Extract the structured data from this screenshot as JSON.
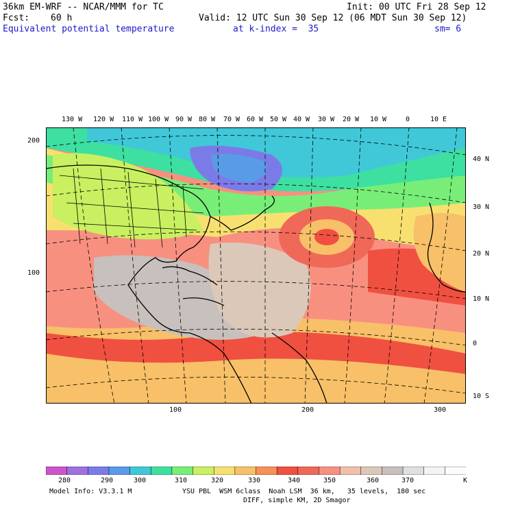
{
  "header": {
    "model": "36km EM-WRF -- NCAR/MMM for TC",
    "init": "Init: 00 UTC Fri 28 Sep 12",
    "fcst_label": "Fcst:",
    "fcst_value": "60 h",
    "valid": "Valid: 12 UTC Sun 30 Sep 12 (06 MDT Sun 30 Sep 12)",
    "field": "Equivalent potential temperature",
    "level": "at k-index =  35",
    "smooth": "sm= 6"
  },
  "map": {
    "lon_labels": [
      "130 W",
      "120 W",
      "110 W",
      "100 W",
      "90 W",
      "80 W",
      "70 W",
      "60 W",
      "50 W",
      "40 W",
      "30 W",
      "20 W",
      "10 W",
      "0",
      "10 E"
    ],
    "lat_labels": [
      "40 N",
      "30 N",
      "20 N",
      "10 N",
      "0",
      "10 S"
    ],
    "grid_y_labels": [
      "200",
      "100"
    ],
    "grid_x_labels": [
      "100",
      "200",
      "300"
    ]
  },
  "colorbar": {
    "colors": [
      "#cc55cc",
      "#a070dd",
      "#7b7be8",
      "#5a9be8",
      "#40c8d8",
      "#3de0a0",
      "#78ee78",
      "#c8f060",
      "#f8e070",
      "#f8c068",
      "#f89058",
      "#f05040",
      "#f06858",
      "#f89080",
      "#f0c0a8",
      "#dcc8b8",
      "#c8c0bc",
      "#e0e0e0",
      "#f4f4f4",
      "#fcfcfc"
    ],
    "labels": [
      "280",
      "290",
      "300",
      "310",
      "320",
      "330",
      "340",
      "350",
      "360",
      "370"
    ],
    "unit": "K"
  },
  "footer": {
    "line1_left": "Model Info: V3.3.1 M",
    "line1_right": "YSU PBL  WSM 6class  Noah LSM  36 km,   35 levels,  180 sec",
    "line2": "DIFF, simple KM, 2D Smagor"
  }
}
